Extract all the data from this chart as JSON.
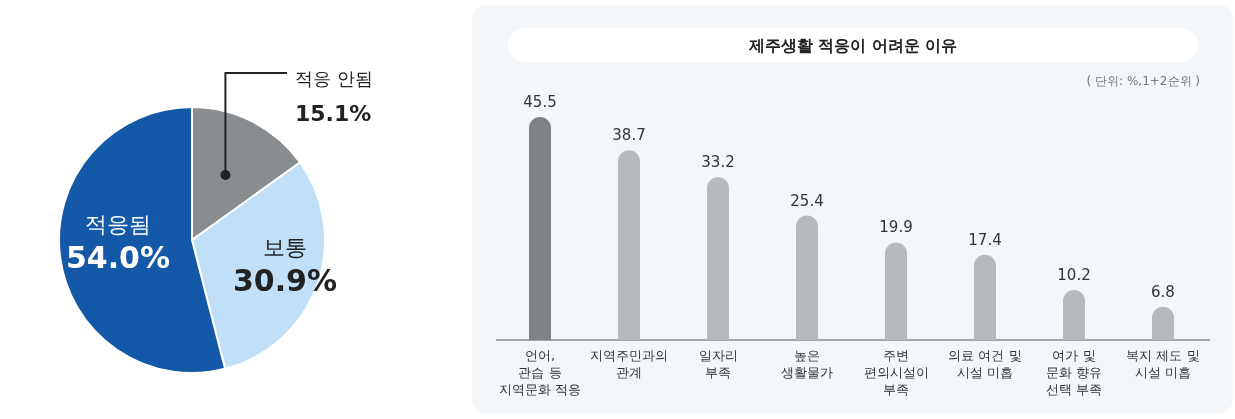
{
  "chart_data": [
    {
      "type": "pie",
      "categories": [
        "적응 안됨",
        "보통",
        "적응됨"
      ],
      "values": [
        15.1,
        30.9,
        54.0
      ],
      "colors": [
        "#8a8d90",
        "#bfe0f8",
        "#1458a8"
      ],
      "value_labels": [
        "15.1%",
        "30.9%",
        "54.0%"
      ]
    },
    {
      "type": "bar",
      "title": "제주생활 적응이 어려운 이유",
      "subtitle": "( 단위: %,1+2순위 )",
      "categories": [
        "언어,\n관습 등\n지역문화 적응",
        "지역주민과의\n관계",
        "일자리\n부족",
        "높은\n생활물가",
        "주변\n편의시설이\n부족",
        "의료 여건 및\n시설 미흡",
        "여가 및\n문화 향유\n선택 부족",
        "복지 제도 및\n시설 미흡"
      ],
      "values": [
        45.5,
        38.7,
        33.2,
        25.4,
        19.9,
        17.4,
        10.2,
        6.8
      ],
      "colors": [
        "#7f8487",
        "#b6babd",
        "#b6babd",
        "#b6babd",
        "#b6babd",
        "#b6babd",
        "#b6babd",
        "#b6babd"
      ],
      "data_labels": true
    }
  ]
}
